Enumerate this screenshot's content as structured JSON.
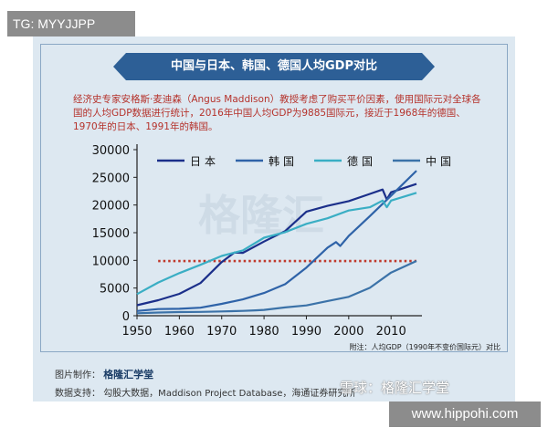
{
  "tag": "TG: MYYJJPP",
  "title": "中国与日本、韩国、德国人均GDP对比",
  "description": "经济史专家安格斯·麦迪森（Angus Maddison）教授考虑了购买平价因素，使用国际元对全球各国的人均GDP数据进行统计，2016年中国人均GDP为9885国际元，接近于1968年的德国、1970年的日本、1991年的韩国。",
  "watermark_center": "格隆汇",
  "note": "附注：人均GDP（1990年不变价国际元）对比",
  "credits": {
    "maker_label": "图片制作：",
    "maker": "格隆汇学堂",
    "source_label": "数据支持：",
    "source": "勾股大数据，Maddison Project Database，海通证券研究所"
  },
  "watermark_bottom": "雪球：格隆汇学堂",
  "url": "www.hippohi.com",
  "chart_data": {
    "type": "line",
    "title": "中国与日本、韩国、德国人均GDP对比",
    "xlabel": "",
    "ylabel": "",
    "xlim": [
      1950,
      2016
    ],
    "ylim": [
      0,
      30000
    ],
    "x_ticks": [
      1950,
      1960,
      1970,
      1980,
      1990,
      2000,
      2010
    ],
    "y_ticks": [
      0,
      5000,
      10000,
      15000,
      20000,
      25000,
      30000
    ],
    "reference_line": {
      "y": 9885,
      "color": "#c0392b",
      "style": "dotted"
    },
    "legend_position": "top",
    "series": [
      {
        "name": "日本",
        "color": "#1b2f8a",
        "x": [
          1950,
          1955,
          1960,
          1965,
          1970,
          1973,
          1975,
          1980,
          1985,
          1990,
          1995,
          2000,
          2005,
          2008,
          2009,
          2010,
          2016
        ],
        "y": [
          1900,
          2800,
          3950,
          5900,
          9700,
          11400,
          11350,
          13400,
          15300,
          18800,
          19850,
          20700,
          22000,
          22800,
          21000,
          22300,
          23800
        ]
      },
      {
        "name": "韩国",
        "color": "#2f63a8",
        "x": [
          1950,
          1955,
          1960,
          1965,
          1970,
          1975,
          1980,
          1985,
          1990,
          1995,
          1997,
          1998,
          2000,
          2005,
          2010,
          2016
        ],
        "y": [
          850,
          1200,
          1250,
          1450,
          2150,
          2950,
          4100,
          5700,
          8700,
          12300,
          13300,
          12600,
          14400,
          18000,
          21700,
          26200
        ]
      },
      {
        "name": "德国",
        "color": "#3aaec4",
        "x": [
          1950,
          1955,
          1960,
          1965,
          1970,
          1975,
          1980,
          1985,
          1990,
          1995,
          2000,
          2005,
          2008,
          2009,
          2010,
          2016
        ],
        "y": [
          3900,
          6000,
          7700,
          9200,
          10800,
          11800,
          14100,
          15100,
          16600,
          17600,
          19000,
          19600,
          20800,
          19600,
          20800,
          22200
        ]
      },
      {
        "name": "中国",
        "color": "#3b72a8",
        "x": [
          1950,
          1955,
          1960,
          1965,
          1970,
          1975,
          1978,
          1980,
          1985,
          1990,
          1995,
          2000,
          2005,
          2010,
          2016
        ],
        "y": [
          450,
          580,
          660,
          700,
          780,
          870,
          980,
          1060,
          1500,
          1870,
          2650,
          3420,
          5050,
          7800,
          9885
        ]
      }
    ]
  }
}
